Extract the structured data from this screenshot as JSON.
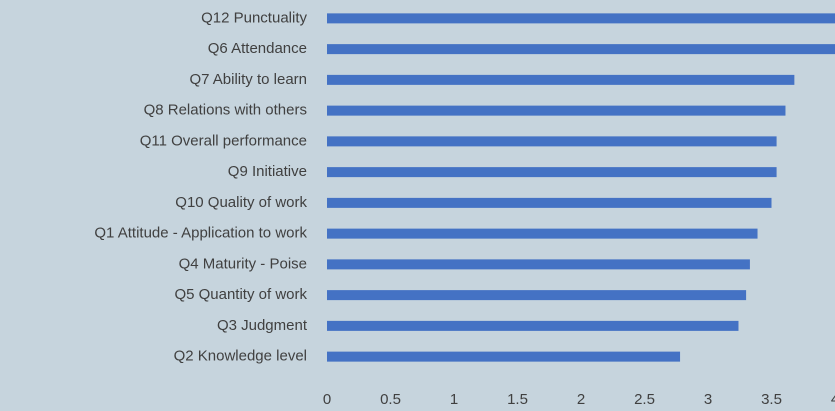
{
  "chart_data": {
    "type": "hbar",
    "categories": [
      "Q12 Punctuality",
      "Q6 Attendance",
      "Q7 Ability to learn",
      "Q8 Relations with others",
      "Q11 Overall performance",
      "Q9 Initiative",
      "Q10 Quality of work",
      "Q1 Attitude - Application to work",
      "Q4 Maturity - Poise",
      "Q5 Quantity of work",
      "Q3 Judgment",
      "Q2 Knowledge level"
    ],
    "values": [
      4.0,
      4.0,
      3.68,
      3.61,
      3.54,
      3.54,
      3.5,
      3.39,
      3.33,
      3.3,
      3.24,
      2.78
    ],
    "color": "#4472c4",
    "xlim": [
      0,
      4
    ],
    "xticks": [
      0,
      0.5,
      1,
      1.5,
      2,
      2.5,
      3,
      3.5,
      4
    ],
    "grid": false
  }
}
